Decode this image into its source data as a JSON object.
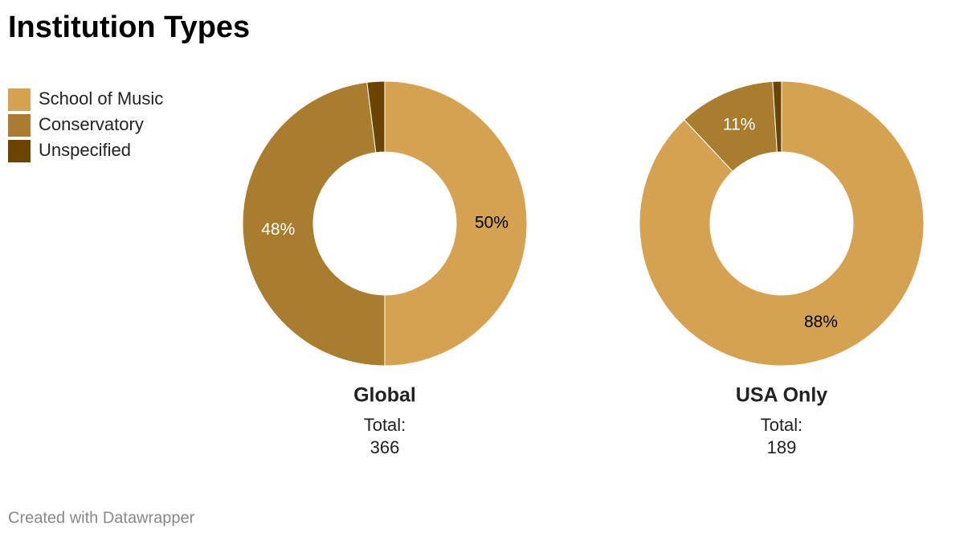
{
  "title": "Institution Types",
  "credit": "Created with Datawrapper",
  "chart_data": [
    {
      "type": "pie",
      "donut": true,
      "title": "Global",
      "total_label": "Total:",
      "total": 366,
      "categories": [
        "School of Music",
        "Conservatory",
        "Unspecified"
      ],
      "values": [
        50,
        48,
        2
      ],
      "value_labels": [
        "50%",
        "48%",
        null
      ],
      "colors": [
        "#d4a250",
        "#a97d2e",
        "#6b4400"
      ],
      "label_colors": [
        "#000000",
        "#ffffff",
        "#ffffff"
      ],
      "legend": "top-left"
    },
    {
      "type": "pie",
      "donut": true,
      "title": "USA Only",
      "total_label": "Total:",
      "total": 189,
      "categories": [
        "School of Music",
        "Conservatory",
        "Unspecified"
      ],
      "values": [
        88,
        11,
        1
      ],
      "value_labels": [
        "88%",
        "11%",
        null
      ],
      "colors": [
        "#d4a250",
        "#a97d2e",
        "#6b4400"
      ],
      "label_colors": [
        "#000000",
        "#ffffff",
        "#ffffff"
      ]
    }
  ]
}
